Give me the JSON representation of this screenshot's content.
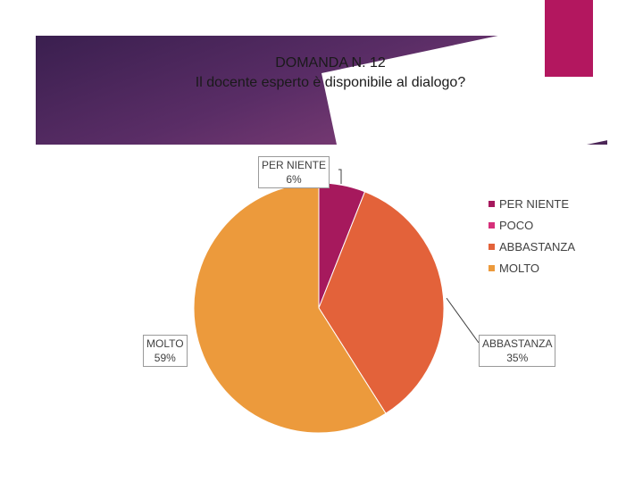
{
  "chart_data": {
    "type": "pie",
    "title": "DOMANDA N. 12",
    "subtitle": "Il docente esperto è disponibile al dialogo?",
    "categories": [
      "PER NIENTE",
      "POCO",
      "ABBASTANZA",
      "MOLTO"
    ],
    "values": [
      6,
      0,
      35,
      59
    ],
    "value_labels": [
      "6%",
      "",
      "35%",
      "59%"
    ],
    "colors": [
      "#a6195d",
      "#d6307a",
      "#e3623a",
      "#ec9a3c"
    ],
    "legend_position": "right"
  }
}
